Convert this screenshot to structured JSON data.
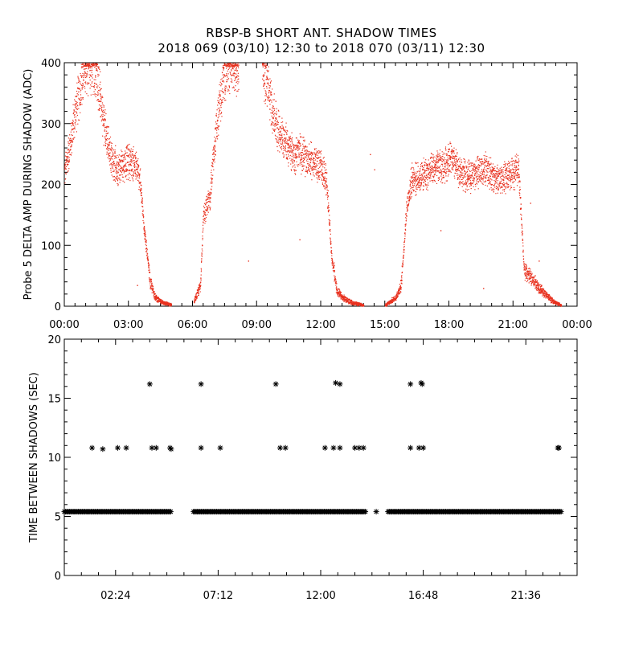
{
  "header": {
    "title_line1": "RBSP-B SHORT ANT. SHADOW TIMES",
    "title_line2": "2018 069 (03/10) 12:30 to 2018 070 (03/11) 12:30"
  },
  "colors": {
    "top_points": "#e8311e",
    "bottom_points": "#000000",
    "axis": "#000000"
  },
  "chart_data": [
    {
      "type": "scatter",
      "name": "top-panel",
      "ylabel": "Probe 5 DELTA AMP DURING SHADOW (ADC)",
      "xlabel": "",
      "ylim": [
        0,
        400
      ],
      "xlim_hours": [
        0,
        24
      ],
      "x_tick_labels": [
        "00:00",
        "03:00",
        "06:00",
        "09:00",
        "12:00",
        "15:00",
        "18:00",
        "21:00",
        "00:00"
      ],
      "y_tick_labels": [
        "0",
        "100",
        "200",
        "300",
        "400"
      ],
      "grid": false,
      "segments": [
        {
          "x": [
            0.0,
            0.25,
            0.5,
            0.75,
            1.0,
            1.25,
            1.5,
            1.75,
            2.0,
            2.25,
            2.5,
            2.75,
            3.0,
            3.25,
            3.5,
            3.75,
            4.0,
            4.25,
            4.5,
            4.75,
            5.0
          ],
          "y": [
            220,
            265,
            320,
            360,
            400,
            400,
            380,
            320,
            270,
            240,
            225,
            235,
            240,
            235,
            215,
            120,
            40,
            15,
            8,
            5,
            3
          ]
        },
        {
          "x": [
            6.05,
            6.2,
            6.35,
            6.5,
            6.65,
            6.8,
            6.95,
            7.1,
            7.25,
            7.4,
            7.55,
            7.7,
            7.85,
            8.0,
            8.15
          ],
          "y": [
            8,
            20,
            35,
            150,
            165,
            180,
            240,
            290,
            330,
            365,
            390,
            400,
            400,
            400,
            400
          ]
        },
        {
          "x": [
            9.25,
            9.5,
            9.75,
            10.0,
            10.25,
            10.5,
            10.75,
            11.0,
            11.25,
            11.5,
            11.75,
            12.0,
            12.25,
            12.5,
            12.75,
            13.0,
            13.25,
            13.5,
            13.75,
            14.0
          ],
          "y": [
            400,
            360,
            320,
            290,
            275,
            260,
            250,
            255,
            245,
            240,
            235,
            230,
            210,
            80,
            25,
            15,
            10,
            6,
            4,
            2
          ]
        },
        {
          "x": [
            15.0,
            15.25,
            15.5,
            15.75,
            16.0,
            16.25,
            16.5,
            16.75,
            17.0,
            17.25,
            17.5,
            17.75,
            18.0,
            18.25,
            18.5,
            18.75,
            19.0,
            19.25,
            19.5,
            19.75,
            20.0,
            20.25,
            20.5,
            20.75,
            21.0,
            21.25,
            21.5,
            21.75,
            22.0,
            22.25,
            22.5,
            22.75,
            23.0,
            23.25
          ],
          "y": [
            2,
            8,
            15,
            35,
            160,
            210,
            210,
            215,
            220,
            225,
            230,
            230,
            245,
            235,
            220,
            215,
            215,
            220,
            225,
            225,
            215,
            210,
            210,
            215,
            220,
            230,
            60,
            50,
            40,
            30,
            20,
            12,
            6,
            2
          ]
        }
      ],
      "outliers": [
        {
          "x": 3.4,
          "y": 35
        },
        {
          "x": 8.6,
          "y": 75
        },
        {
          "x": 11.0,
          "y": 110
        },
        {
          "x": 14.3,
          "y": 250
        },
        {
          "x": 14.5,
          "y": 225
        },
        {
          "x": 17.6,
          "y": 125
        },
        {
          "x": 19.6,
          "y": 30
        },
        {
          "x": 21.8,
          "y": 170
        },
        {
          "x": 22.2,
          "y": 75
        }
      ]
    },
    {
      "type": "scatter",
      "name": "bottom-panel",
      "ylabel": "TIME BETWEEN SHADOWS (SEC)",
      "xlabel": "",
      "ylim": [
        0,
        20
      ],
      "xlim_hours": [
        0,
        24
      ],
      "x_tick_labels": [
        "02:24",
        "07:12",
        "12:00",
        "16:48",
        "21:36"
      ],
      "y_tick_labels": [
        "0",
        "5",
        "10",
        "15",
        "20"
      ],
      "grid": false,
      "baseline_value": 5.4,
      "baseline_ranges": [
        [
          0.0,
          5.0
        ],
        [
          6.05,
          14.1
        ],
        [
          15.15,
          23.3
        ]
      ],
      "baseline_markers": [
        {
          "x": 14.6,
          "y": 5.4
        }
      ],
      "upper_markers": [
        {
          "x": 1.3,
          "y": 10.8
        },
        {
          "x": 1.8,
          "y": 10.7
        },
        {
          "x": 2.5,
          "y": 10.8
        },
        {
          "x": 2.9,
          "y": 10.8
        },
        {
          "x": 4.1,
          "y": 10.8
        },
        {
          "x": 4.3,
          "y": 10.8
        },
        {
          "x": 4.95,
          "y": 10.8
        },
        {
          "x": 5.0,
          "y": 10.7
        },
        {
          "x": 6.4,
          "y": 10.8
        },
        {
          "x": 7.3,
          "y": 10.8
        },
        {
          "x": 10.1,
          "y": 10.8
        },
        {
          "x": 10.35,
          "y": 10.8
        },
        {
          "x": 12.2,
          "y": 10.8
        },
        {
          "x": 12.6,
          "y": 10.8
        },
        {
          "x": 12.9,
          "y": 10.8
        },
        {
          "x": 13.6,
          "y": 10.8
        },
        {
          "x": 13.8,
          "y": 10.8
        },
        {
          "x": 14.0,
          "y": 10.8
        },
        {
          "x": 16.2,
          "y": 10.8
        },
        {
          "x": 16.6,
          "y": 10.8
        },
        {
          "x": 16.8,
          "y": 10.8
        },
        {
          "x": 23.1,
          "y": 10.8
        },
        {
          "x": 23.15,
          "y": 10.8
        },
        {
          "x": 4.0,
          "y": 16.2
        },
        {
          "x": 6.4,
          "y": 16.2
        },
        {
          "x": 9.9,
          "y": 16.2
        },
        {
          "x": 12.7,
          "y": 16.3
        },
        {
          "x": 12.9,
          "y": 16.2
        },
        {
          "x": 16.2,
          "y": 16.2
        },
        {
          "x": 16.7,
          "y": 16.3
        },
        {
          "x": 16.75,
          "y": 16.2
        }
      ]
    }
  ]
}
